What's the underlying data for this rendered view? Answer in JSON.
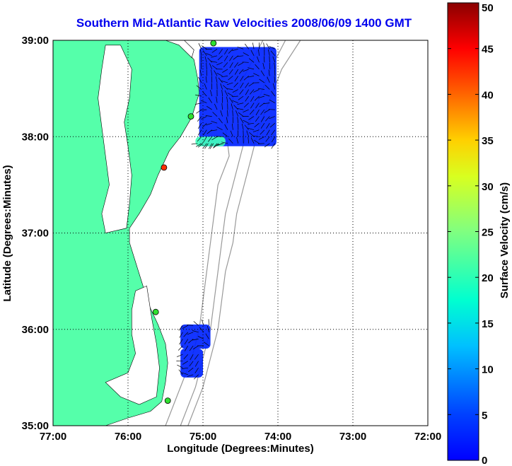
{
  "chart_data": {
    "type": "heatmap",
    "title": "Southern Mid-Atlantic Raw Velocities 2008/06/09 1400 GMT",
    "xlabel": "Longitude (Degrees:Minutes)",
    "ylabel": "Latitude (Degrees:Minutes)",
    "x_ticks": [
      "77:00",
      "76:00",
      "75:00",
      "74:00",
      "73:00",
      "72:00"
    ],
    "y_ticks": [
      "39:00",
      "38:00",
      "37:00",
      "36:00",
      "35:00"
    ],
    "xlim": [
      -77,
      -72
    ],
    "ylim": [
      35,
      39
    ],
    "grid": true,
    "colorbar": {
      "label": "Surface Velocity (cm/s)",
      "ticks": [
        "50",
        "45",
        "40",
        "35",
        "30",
        "25",
        "20",
        "15",
        "10",
        "5",
        "0"
      ],
      "range": [
        0,
        50
      ],
      "colormap": "jet"
    },
    "land_color": "#55ffaa",
    "water_color": "#ffffff",
    "radar_sites": [
      {
        "lon": -74.86,
        "lat": 38.97
      },
      {
        "lon": -75.16,
        "lat": 38.21
      },
      {
        "lon": -75.52,
        "lat": 37.68
      },
      {
        "lon": -75.63,
        "lat": 36.18
      },
      {
        "lon": -75.47,
        "lat": 35.26
      }
    ],
    "velocity_patches": [
      {
        "region": "delaware-bay-offshore",
        "lon_range": [
          -75.05,
          -74.02
        ],
        "lat_range": [
          37.9,
          38.93
        ],
        "speed_cm_s": 8
      },
      {
        "region": "mouth-patch",
        "lon_range": [
          -75.1,
          -74.7
        ],
        "lat_range": [
          37.9,
          38.0
        ],
        "speed_cm_s": 22
      },
      {
        "region": "hatteras-north",
        "lon_range": [
          -75.3,
          -74.9
        ],
        "lat_range": [
          35.8,
          36.05
        ],
        "speed_cm_s": 8
      },
      {
        "region": "hatteras-south",
        "lon_range": [
          -75.3,
          -75.0
        ],
        "lat_range": [
          35.5,
          35.8
        ],
        "speed_cm_s": 8
      }
    ]
  }
}
